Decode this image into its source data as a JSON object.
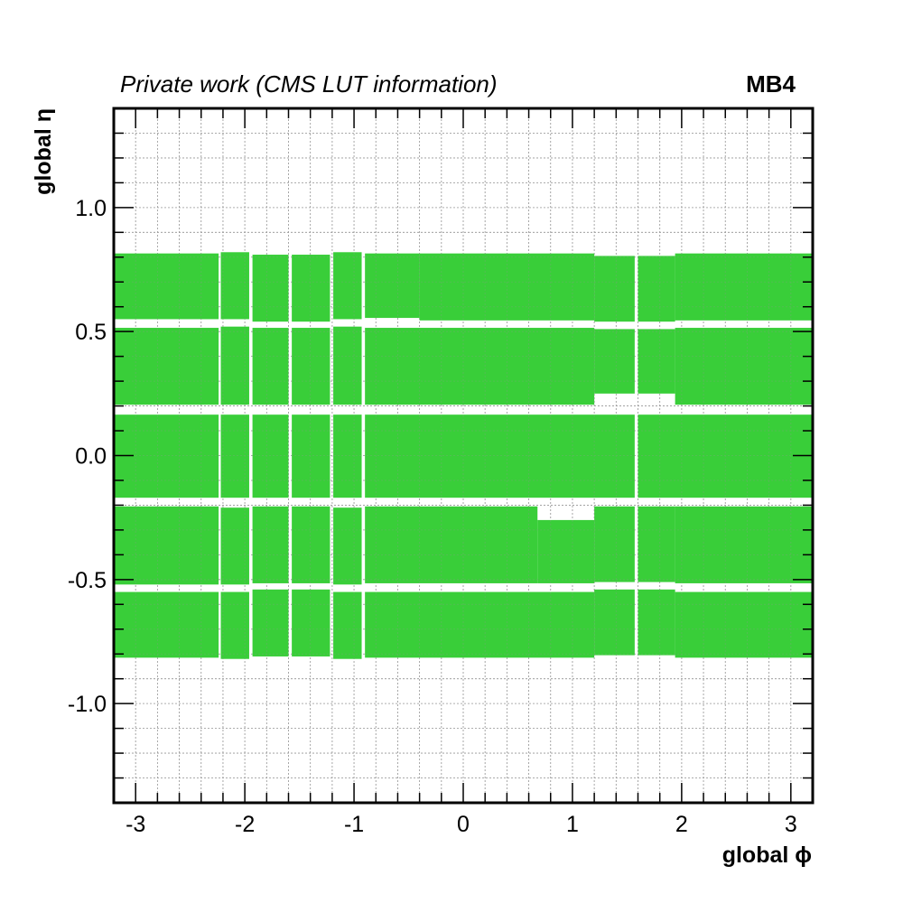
{
  "chart_data": {
    "type": "heatmap",
    "title": "Private work (CMS LUT information)",
    "title_right": "MB4",
    "xlabel": "global ϕ",
    "ylabel": "global η",
    "xlim": [
      -3.2,
      3.2
    ],
    "ylim": [
      -1.4,
      1.4
    ],
    "grid": true,
    "fill_color": "#33cc33",
    "x_ticks": [
      {
        "value": -3,
        "label": "-3"
      },
      {
        "value": -2,
        "label": "-2"
      },
      {
        "value": -1,
        "label": "-1"
      },
      {
        "value": 0,
        "label": "0"
      },
      {
        "value": 1,
        "label": "1"
      },
      {
        "value": 2,
        "label": "2"
      },
      {
        "value": 3,
        "label": "3"
      }
    ],
    "y_ticks": [
      {
        "value": -1.0,
        "label": "-1.0"
      },
      {
        "value": -0.5,
        "label": "-0.5"
      },
      {
        "value": 0.0,
        "label": "0.0"
      },
      {
        "value": 0.5,
        "label": "0.5"
      },
      {
        "value": 1.0,
        "label": "1.0"
      }
    ],
    "regions": [
      {
        "x0": -3.2,
        "x1": -2.24,
        "y0": 0.55,
        "y1": 0.815
      },
      {
        "x0": -2.22,
        "x1": -1.96,
        "y0": 0.55,
        "y1": 0.82
      },
      {
        "x0": -1.93,
        "x1": -1.6,
        "y0": 0.54,
        "y1": 0.81
      },
      {
        "x0": -1.57,
        "x1": -1.22,
        "y0": 0.54,
        "y1": 0.81
      },
      {
        "x0": -1.19,
        "x1": -0.93,
        "y0": 0.55,
        "y1": 0.82
      },
      {
        "x0": -0.9,
        "x1": -0.4,
        "y0": 0.555,
        "y1": 0.815
      },
      {
        "x0": -0.4,
        "x1": 1.2,
        "y0": 0.545,
        "y1": 0.815
      },
      {
        "x0": 1.2,
        "x1": 1.57,
        "y0": 0.54,
        "y1": 0.805
      },
      {
        "x0": 1.6,
        "x1": 1.94,
        "y0": 0.54,
        "y1": 0.805
      },
      {
        "x0": 1.94,
        "x1": 3.2,
        "y0": 0.545,
        "y1": 0.815
      },
      {
        "x0": -3.2,
        "x1": -2.24,
        "y0": 0.205,
        "y1": 0.515
      },
      {
        "x0": -2.22,
        "x1": -1.96,
        "y0": 0.205,
        "y1": 0.52
      },
      {
        "x0": -1.93,
        "x1": -1.6,
        "y0": 0.205,
        "y1": 0.515
      },
      {
        "x0": -1.57,
        "x1": -1.22,
        "y0": 0.205,
        "y1": 0.515
      },
      {
        "x0": -1.19,
        "x1": -0.93,
        "y0": 0.205,
        "y1": 0.52
      },
      {
        "x0": -0.9,
        "x1": 1.2,
        "y0": 0.205,
        "y1": 0.515
      },
      {
        "x0": 1.2,
        "x1": 1.57,
        "y0": 0.25,
        "y1": 0.51
      },
      {
        "x0": 1.6,
        "x1": 1.94,
        "y0": 0.25,
        "y1": 0.51
      },
      {
        "x0": 1.94,
        "x1": 3.2,
        "y0": 0.205,
        "y1": 0.515
      },
      {
        "x0": -3.2,
        "x1": -2.24,
        "y0": -0.17,
        "y1": 0.165
      },
      {
        "x0": -2.22,
        "x1": -1.96,
        "y0": -0.17,
        "y1": 0.165
      },
      {
        "x0": -1.93,
        "x1": -1.6,
        "y0": -0.17,
        "y1": 0.165
      },
      {
        "x0": -1.57,
        "x1": -1.22,
        "y0": -0.17,
        "y1": 0.165
      },
      {
        "x0": -1.19,
        "x1": -0.93,
        "y0": -0.17,
        "y1": 0.165
      },
      {
        "x0": -0.9,
        "x1": 1.57,
        "y0": -0.17,
        "y1": 0.165
      },
      {
        "x0": 1.6,
        "x1": 3.2,
        "y0": -0.17,
        "y1": 0.165
      },
      {
        "x0": -3.2,
        "x1": -2.24,
        "y0": -0.52,
        "y1": -0.205
      },
      {
        "x0": -2.22,
        "x1": -1.96,
        "y0": -0.52,
        "y1": -0.21
      },
      {
        "x0": -1.93,
        "x1": -1.6,
        "y0": -0.515,
        "y1": -0.205
      },
      {
        "x0": -1.57,
        "x1": -1.22,
        "y0": -0.515,
        "y1": -0.205
      },
      {
        "x0": -1.19,
        "x1": -0.93,
        "y0": -0.52,
        "y1": -0.21
      },
      {
        "x0": -0.9,
        "x1": 0.68,
        "y0": -0.515,
        "y1": -0.205
      },
      {
        "x0": 0.68,
        "x1": 1.2,
        "y0": -0.515,
        "y1": -0.26
      },
      {
        "x0": 1.2,
        "x1": 1.57,
        "y0": -0.51,
        "y1": -0.205
      },
      {
        "x0": 1.6,
        "x1": 1.94,
        "y0": -0.51,
        "y1": -0.205
      },
      {
        "x0": 1.94,
        "x1": 3.2,
        "y0": -0.515,
        "y1": -0.205
      },
      {
        "x0": -3.2,
        "x1": -2.24,
        "y0": -0.815,
        "y1": -0.55
      },
      {
        "x0": -2.22,
        "x1": -1.96,
        "y0": -0.82,
        "y1": -0.55
      },
      {
        "x0": -1.93,
        "x1": -1.6,
        "y0": -0.81,
        "y1": -0.54
      },
      {
        "x0": -1.57,
        "x1": -1.22,
        "y0": -0.81,
        "y1": -0.54
      },
      {
        "x0": -1.19,
        "x1": -0.93,
        "y0": -0.82,
        "y1": -0.55
      },
      {
        "x0": -0.9,
        "x1": 1.2,
        "y0": -0.815,
        "y1": -0.55
      },
      {
        "x0": 1.2,
        "x1": 1.57,
        "y0": -0.805,
        "y1": -0.54
      },
      {
        "x0": 1.6,
        "x1": 1.94,
        "y0": -0.805,
        "y1": -0.54
      },
      {
        "x0": 1.94,
        "x1": 3.2,
        "y0": -0.815,
        "y1": -0.55
      }
    ]
  }
}
